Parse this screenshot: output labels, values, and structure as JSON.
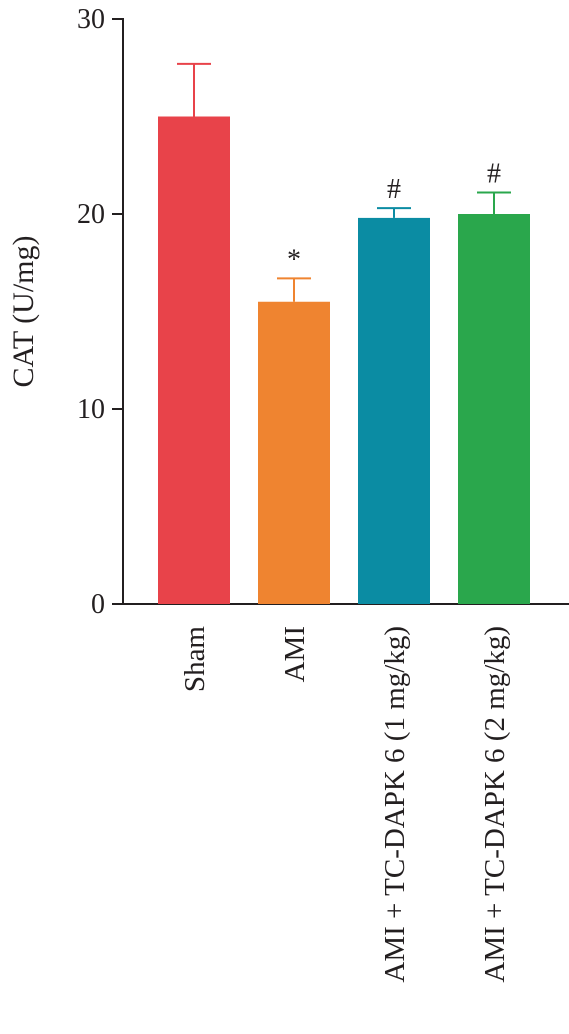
{
  "chart_data": {
    "type": "bar",
    "title": "",
    "xlabel": "",
    "ylabel": "CAT (U/mg)",
    "ylim": [
      0,
      30
    ],
    "yticks": [
      "0",
      "10",
      "20",
      "30"
    ],
    "categories": [
      "Sham",
      "AMI",
      "AMI + TC-DAPK 6 (1 mg/kg)",
      "AMI + TC-DAPK 6 (2 mg/kg)"
    ],
    "values": [
      25.0,
      15.5,
      19.8,
      20.0
    ],
    "errors": [
      2.7,
      1.2,
      0.5,
      1.1
    ],
    "annotations": [
      "",
      "*",
      "#",
      "#"
    ],
    "colors": [
      "#e8434a",
      "#ef8430",
      "#0b8ca3",
      "#2aa74c"
    ],
    "grid": false
  }
}
